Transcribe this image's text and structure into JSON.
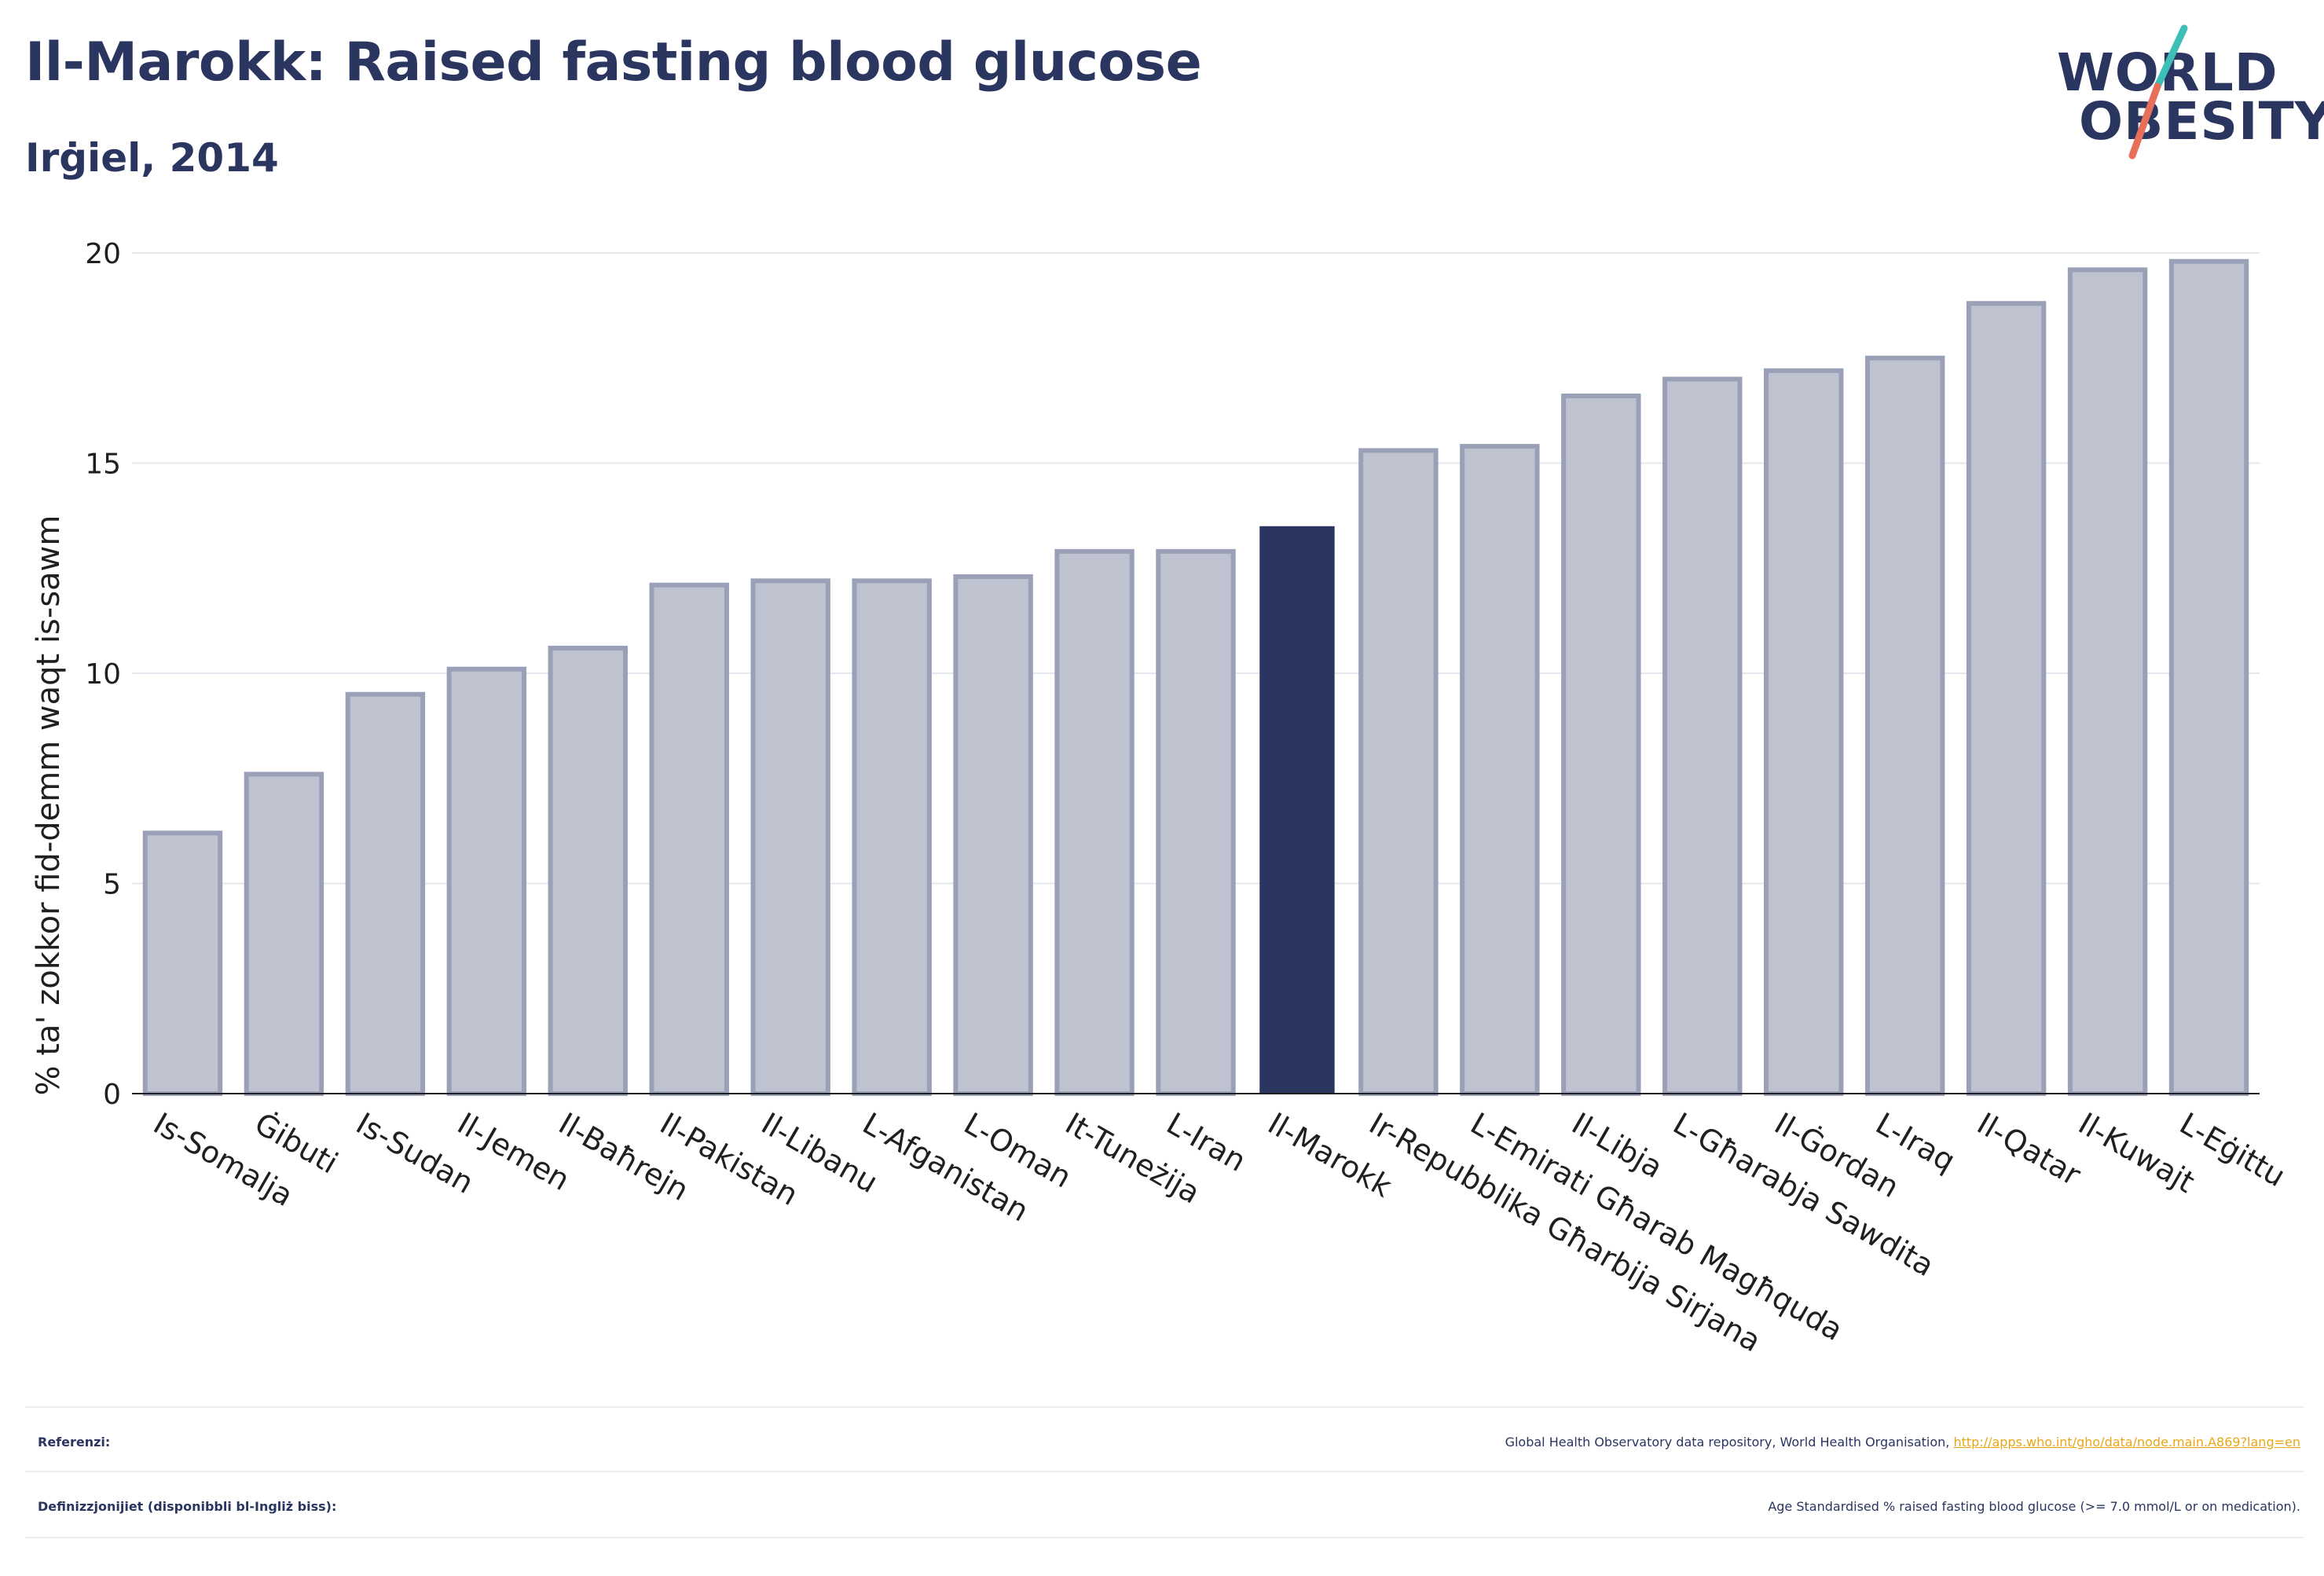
{
  "header": {
    "title": "Il-Marokk: Raised fasting blood glucose",
    "subtitle": "Irġiel, 2014"
  },
  "logo": {
    "line1": "WORLD",
    "line2": "OBESITY",
    "colors": {
      "text": "#2a3560",
      "teal": "#3dbfb8",
      "coral": "#e8705a"
    }
  },
  "chart_data": {
    "type": "bar",
    "title": "Il-Marokk: Raised fasting blood glucose",
    "subtitle": "Irġiel, 2014",
    "ylabel": "% ta' zokkor fid-demm waqt is-sawm",
    "xlabel": "",
    "ylim": [
      0,
      20
    ],
    "yticks": [
      0,
      5,
      10,
      15,
      20
    ],
    "grid": true,
    "highlight": "Il-Marokk",
    "colors": {
      "bar": "#bfc3d0",
      "bar_border": "#9aa0b8",
      "highlight": "#2a3560"
    },
    "categories": [
      "Is-Somalja",
      "Ġibuti",
      "Is-Sudan",
      "Il-Jemen",
      "Il-Baħrejn",
      "Il-Pakistan",
      "Il-Libanu",
      "L-Afganistan",
      "L-Oman",
      "It-Tuneżija",
      "L-Iran",
      "Il-Marokk",
      "Ir-Repubblika Għarbija Sirjana",
      "L-Emirati Għarab Magħquda",
      "Il-Libja",
      "L-Għarabja Sawdita",
      "Il-Ġordan",
      "L-Iraq",
      "Il-Qatar",
      "Il-Kuwajt",
      "L-Eġittu"
    ],
    "values": [
      6.2,
      7.6,
      9.5,
      10.1,
      10.6,
      12.1,
      12.2,
      12.2,
      12.3,
      12.9,
      12.9,
      13.5,
      15.3,
      15.4,
      16.6,
      17.0,
      17.2,
      17.5,
      18.8,
      19.6,
      19.8
    ]
  },
  "footer": {
    "references_label": "Referenzi:",
    "references_text": "Global Health Observatory data repository, World Health Organisation, ",
    "references_link": "http://apps.who.int/gho/data/node.main.A869?lang=en",
    "definitions_label": "Definizzjonijiet (disponibbli bl-Ingliż biss):",
    "definitions_text": "Age Standardised % raised fasting blood glucose (>= 7.0 mmol/L or on medication)."
  }
}
